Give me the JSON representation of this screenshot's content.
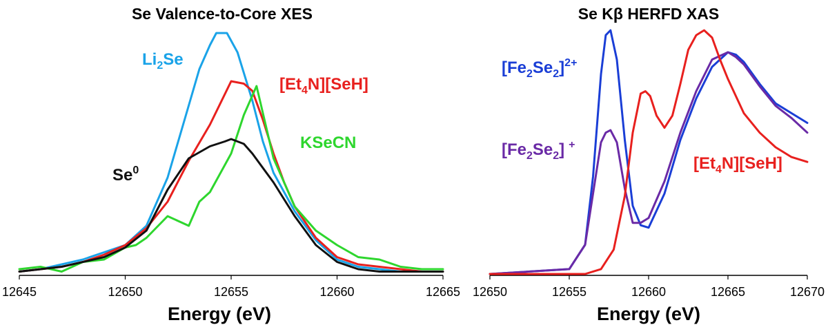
{
  "chart_data": [
    {
      "type": "line",
      "title": "Se Valence-to-Core XES",
      "xlabel": "Energy (eV)",
      "ylabel": "",
      "xlim": [
        12645,
        12665
      ],
      "ylim": [
        0,
        1
      ],
      "xticks": [
        12645,
        12650,
        12655,
        12660,
        12665
      ],
      "series": [
        {
          "name": "Li2Se",
          "label_main": "Li",
          "label_sub": "2",
          "label_tail": "Se",
          "color": "#1aa3e8",
          "x": [
            12645,
            12646,
            12647,
            12648,
            12649,
            12650,
            12651,
            12652,
            12653,
            12653.5,
            12654,
            12654.3,
            12654.8,
            12655.3,
            12656,
            12656.5,
            12657,
            12658,
            12659,
            12660,
            12661,
            12662,
            12663,
            12664,
            12665
          ],
          "y": [
            0.01,
            0.02,
            0.04,
            0.06,
            0.09,
            0.12,
            0.2,
            0.4,
            0.7,
            0.85,
            0.95,
            1.0,
            1.0,
            0.92,
            0.72,
            0.55,
            0.42,
            0.26,
            0.14,
            0.06,
            0.03,
            0.02,
            0.01,
            0.01,
            0.01
          ]
        },
        {
          "name": "[Et4N][SeH]",
          "label_main": "[Et",
          "label_sub": "4",
          "label_tail": "N][SeH]",
          "color": "#e8201e",
          "x": [
            12645,
            12646,
            12647,
            12648,
            12649,
            12650,
            12651,
            12652,
            12653,
            12654,
            12655,
            12655.6,
            12656,
            12656.5,
            12657,
            12657.5,
            12658,
            12659,
            12660,
            12661,
            12662,
            12663,
            12664,
            12665
          ],
          "y": [
            0.01,
            0.02,
            0.03,
            0.05,
            0.08,
            0.12,
            0.19,
            0.3,
            0.47,
            0.62,
            0.8,
            0.79,
            0.76,
            0.64,
            0.5,
            0.38,
            0.28,
            0.15,
            0.07,
            0.04,
            0.03,
            0.02,
            0.01,
            0.01
          ]
        },
        {
          "name": "KSeCN",
          "label_main": "KSeCN",
          "label_sub": "",
          "label_tail": "",
          "color": "#2ed62e",
          "x": [
            12645,
            12646,
            12647,
            12648,
            12649,
            12650,
            12650.5,
            12651,
            12652,
            12653,
            12653.5,
            12654,
            12655,
            12655.6,
            12656.2,
            12657,
            12658,
            12659,
            12660,
            12661,
            12662,
            12663,
            12664,
            12665
          ],
          "y": [
            0.02,
            0.03,
            0.01,
            0.05,
            0.06,
            0.11,
            0.12,
            0.15,
            0.24,
            0.2,
            0.3,
            0.34,
            0.5,
            0.66,
            0.78,
            0.48,
            0.28,
            0.18,
            0.12,
            0.07,
            0.06,
            0.03,
            0.02,
            0.02
          ]
        },
        {
          "name": "Se0",
          "label_main": "Se",
          "label_sup": "0",
          "color": "#111111",
          "x": [
            12645,
            12646,
            12647,
            12648,
            12649,
            12650,
            12651,
            12652,
            12653,
            12654,
            12654.7,
            12655,
            12655.6,
            12656,
            12657,
            12658,
            12659,
            12660,
            12661,
            12662,
            12663,
            12664,
            12665
          ],
          "y": [
            0.01,
            0.02,
            0.03,
            0.05,
            0.07,
            0.11,
            0.18,
            0.35,
            0.48,
            0.53,
            0.55,
            0.56,
            0.54,
            0.5,
            0.38,
            0.24,
            0.12,
            0.05,
            0.02,
            0.01,
            0.01,
            0.01,
            0.01
          ]
        }
      ]
    },
    {
      "type": "line",
      "title": "Se Kβ HERFD XAS",
      "xlabel": "Energy (eV)",
      "ylabel": "",
      "xlim": [
        12650,
        12670
      ],
      "ylim": [
        0,
        1
      ],
      "xticks": [
        12650,
        12655,
        12660,
        12665,
        12670
      ],
      "series": [
        {
          "name": "[Fe2Se2]2+",
          "label_main": "[Fe",
          "label_sub": "2",
          "label_mid": "Se",
          "label_sub2": "2",
          "label_tail": "]",
          "label_sup": "2+",
          "color": "#1a3ed6",
          "x": [
            12650,
            12655,
            12656,
            12656.5,
            12657,
            12657.3,
            12657.6,
            12658,
            12658.5,
            12659,
            12659.5,
            12660,
            12661,
            12662,
            12663,
            12664,
            12665,
            12665.5,
            12666,
            12667,
            12668,
            12669,
            12670
          ],
          "y": [
            0.0,
            0.02,
            0.12,
            0.4,
            0.82,
            0.98,
            1.0,
            0.88,
            0.55,
            0.28,
            0.2,
            0.19,
            0.33,
            0.55,
            0.72,
            0.85,
            0.91,
            0.9,
            0.87,
            0.78,
            0.7,
            0.66,
            0.62
          ]
        },
        {
          "name": "[Fe2Se2]+",
          "label_main": "[Fe",
          "label_sub": "2",
          "label_mid": "Se",
          "label_sub2": "2",
          "label_tail": "]",
          "label_sup": "+",
          "color": "#6a2aa6",
          "x": [
            12650,
            12655,
            12656,
            12656.5,
            12657,
            12657.3,
            12657.6,
            12658,
            12658.5,
            12659,
            12659.5,
            12660,
            12661,
            12662,
            12663,
            12664,
            12665,
            12665.5,
            12666,
            12667,
            12668,
            12669,
            12670
          ],
          "y": [
            0.0,
            0.02,
            0.12,
            0.33,
            0.54,
            0.58,
            0.59,
            0.54,
            0.35,
            0.21,
            0.21,
            0.23,
            0.38,
            0.58,
            0.75,
            0.88,
            0.91,
            0.89,
            0.86,
            0.77,
            0.69,
            0.64,
            0.58
          ]
        },
        {
          "name": "[Et4N][SeH]",
          "label_main": "[Et",
          "label_sub": "4",
          "label_tail": "N][SeH]",
          "color": "#e8201e",
          "x": [
            12650,
            12655,
            12656,
            12657,
            12657.8,
            12658.5,
            12659,
            12659.5,
            12659.8,
            12660.1,
            12660.5,
            12661,
            12661.5,
            12662,
            12662.5,
            12663,
            12663.5,
            12664,
            12664.5,
            12665,
            12666,
            12667,
            12668,
            12669,
            12670
          ],
          "y": [
            0.0,
            0.0,
            0.0,
            0.02,
            0.1,
            0.32,
            0.58,
            0.74,
            0.75,
            0.73,
            0.65,
            0.6,
            0.65,
            0.78,
            0.92,
            0.98,
            1.0,
            0.97,
            0.88,
            0.8,
            0.66,
            0.58,
            0.52,
            0.48,
            0.46
          ]
        }
      ]
    }
  ]
}
